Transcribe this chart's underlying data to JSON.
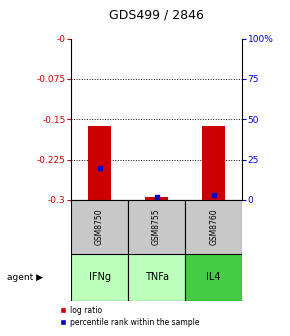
{
  "title": "GDS499 / 2846",
  "samples": [
    "GSM8750",
    "GSM8755",
    "GSM8760"
  ],
  "agents": [
    "IFNg",
    "TNFa",
    "IL4"
  ],
  "log_ratios": [
    -0.163,
    -0.295,
    -0.163
  ],
  "percentile_ranks": [
    20.0,
    2.0,
    3.0
  ],
  "ylim_left": [
    -0.3,
    0.0
  ],
  "ylim_right": [
    0.0,
    100.0
  ],
  "left_ticks": [
    0.0,
    -0.075,
    -0.15,
    -0.225,
    -0.3
  ],
  "left_tick_labels": [
    "-0",
    "-0.075",
    "-0.15",
    "-0.225",
    "-0.3"
  ],
  "right_ticks": [
    100,
    75,
    50,
    25,
    0
  ],
  "right_tick_labels": [
    "100%",
    "75",
    "50",
    "25",
    "0"
  ],
  "bar_color": "#cc0000",
  "percentile_color": "#0000cc",
  "sample_bg": "#c8c8c8",
  "agent_color_ifng": "#bbffbb",
  "agent_color_tnfa": "#bbffbb",
  "agent_color_il4": "#44cc44",
  "left_tick_color": "#cc0000",
  "right_tick_color": "#0000cc",
  "bar_width": 0.4,
  "gridline_ticks": [
    -0.075,
    -0.15,
    -0.225
  ]
}
